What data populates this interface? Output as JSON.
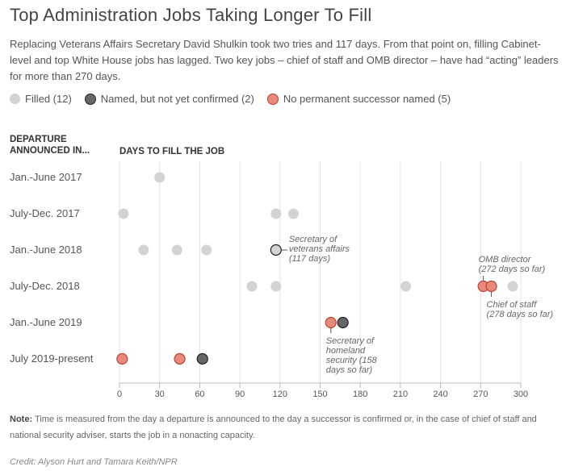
{
  "title": "Top Administration Jobs Taking Longer To Fill",
  "subtitle": "Replacing Veterans Affairs Secretary David Shulkin took two tries and 117 days. From that point on, filling Cabinet-level and top White House jobs has lagged. Two key jobs – chief of staff and OMB director – have had “acting” leaders for more than 270 days.",
  "legend": [
    {
      "label": "Filled (12)",
      "color": "#d3d3d3",
      "stroke": "#d3d3d3"
    },
    {
      "label": "Named, but not yet confirmed (2)",
      "color": "#666666",
      "stroke": "#222222"
    },
    {
      "label": "No permanent successor named (5)",
      "color": "#e8897a",
      "stroke": "#c0392b"
    }
  ],
  "note_label": "Note:",
  "note": " Time is measured from the day a departure is announced to the day a successor is confirmed or, in the case of chief of staff and national security adviser, starts the job in a nonacting capacity.",
  "credit": "Credit: Alyson Hurt and Tamara Keith/NPR",
  "chart_data": {
    "type": "scatter",
    "ylabel": "DEPARTURE ANNOUNCED IN...",
    "xlabel": "DAYS TO FILL THE JOB",
    "xlim": [
      0,
      300
    ],
    "xticks": [
      0,
      30,
      60,
      90,
      120,
      150,
      180,
      210,
      240,
      270,
      300
    ],
    "grid": true,
    "categories": [
      "Jan.-June 2017",
      "July-Dec. 2017",
      "Jan.-June 2018",
      "July-Dec. 2018",
      "Jan.-June 2019",
      "July 2019-present"
    ],
    "points": [
      {
        "row": 0,
        "days": 30,
        "status": "filled"
      },
      {
        "row": 1,
        "days": 3,
        "status": "filled"
      },
      {
        "row": 1,
        "days": 117,
        "status": "filled"
      },
      {
        "row": 1,
        "days": 130,
        "status": "filled"
      },
      {
        "row": 2,
        "days": 18,
        "status": "filled"
      },
      {
        "row": 2,
        "days": 43,
        "status": "filled"
      },
      {
        "row": 2,
        "days": 65,
        "status": "filled"
      },
      {
        "row": 2,
        "days": 117,
        "status": "filled",
        "highlight": true
      },
      {
        "row": 3,
        "days": 99,
        "status": "filled"
      },
      {
        "row": 3,
        "days": 117,
        "status": "filled"
      },
      {
        "row": 3,
        "days": 214,
        "status": "filled"
      },
      {
        "row": 3,
        "days": 294,
        "status": "filled"
      },
      {
        "row": 3,
        "days": 272,
        "status": "none"
      },
      {
        "row": 3,
        "days": 278,
        "status": "none"
      },
      {
        "row": 4,
        "days": 158,
        "status": "none"
      },
      {
        "row": 4,
        "days": 167,
        "status": "named"
      },
      {
        "row": 5,
        "days": 2,
        "status": "none"
      },
      {
        "row": 5,
        "days": 45,
        "status": "none"
      },
      {
        "row": 5,
        "days": 62,
        "status": "named"
      }
    ],
    "annotations": [
      {
        "row": 2,
        "days": 117,
        "lines": [
          "Secretary of",
          "veterans affairs",
          "(117 days)"
        ],
        "side": "right"
      },
      {
        "row": 3,
        "days": 272,
        "lines": [
          "OMB director",
          "(272 days so far)"
        ],
        "side": "above"
      },
      {
        "row": 3,
        "days": 278,
        "lines": [
          "Chief of staff",
          "(278 days so far)"
        ],
        "side": "below"
      },
      {
        "row": 4,
        "days": 158,
        "lines": [
          "Secretary of",
          "homeland",
          "security (158",
          "days so far)"
        ],
        "side": "below"
      }
    ]
  }
}
